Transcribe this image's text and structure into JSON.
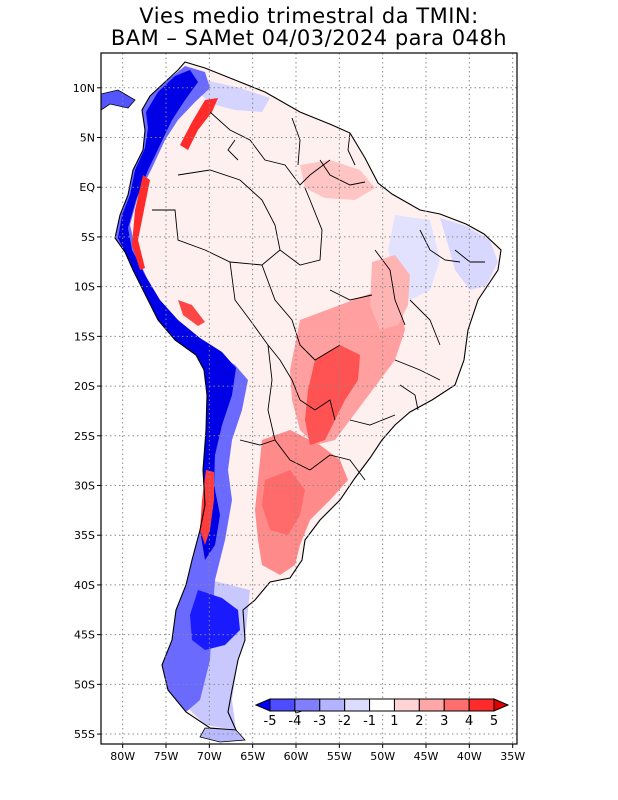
{
  "title_line1": "Vies medio trimestral da TMIN:",
  "title_line2": "BAM – SAMet 04/03/2024  para 048h",
  "lat_labels": [
    {
      "label": "10N",
      "lat": 10
    },
    {
      "label": "5N",
      "lat": 5
    },
    {
      "label": "EQ",
      "lat": 0
    },
    {
      "label": "5S",
      "lat": -5
    },
    {
      "label": "10S",
      "lat": -10
    },
    {
      "label": "15S",
      "lat": -15
    },
    {
      "label": "20S",
      "lat": -20
    },
    {
      "label": "25S",
      "lat": -25
    },
    {
      "label": "30S",
      "lat": -30
    },
    {
      "label": "35S",
      "lat": -35
    },
    {
      "label": "40S",
      "lat": -40
    },
    {
      "label": "45S",
      "lat": -45
    },
    {
      "label": "50S",
      "lat": -50
    },
    {
      "label": "55S",
      "lat": -55
    }
  ],
  "lon_labels": [
    {
      "label": "80W",
      "lon": -80
    },
    {
      "label": "75W",
      "lon": -75
    },
    {
      "label": "70W",
      "lon": -70
    },
    {
      "label": "65W",
      "lon": -65
    },
    {
      "label": "60W",
      "lon": -60
    },
    {
      "label": "55W",
      "lon": -55
    },
    {
      "label": "50W",
      "lon": -50
    },
    {
      "label": "45W",
      "lon": -45
    },
    {
      "label": "40W",
      "lon": -40
    },
    {
      "label": "35W",
      "lon": -35
    }
  ],
  "map_extent": {
    "lon_min": -82.5,
    "lon_max": -34.5,
    "lat_min": -56,
    "lat_max": 13.5
  },
  "colorbar": {
    "labels": [
      "-5",
      "-4",
      "-3",
      "-2",
      "-1",
      "1",
      "2",
      "3",
      "4",
      "5"
    ],
    "colors": [
      "#0000ff",
      "#4d4dff",
      "#8080ff",
      "#b3b3ff",
      "#dcdcff",
      "#ffffff",
      "#ffd4d4",
      "#ffa6a6",
      "#ff6e6e",
      "#ff2a2a",
      "#e00000"
    ]
  },
  "colors": {
    "deep_blue": "#0000e6",
    "mid_blue": "#6666ff",
    "light_blue": "#c8c8ff",
    "light_red": "#ffd2d2",
    "mid_red": "#ff8c8c",
    "strong_red": "#ff3c3c",
    "grid": "#8a8a8a",
    "border": "#000000"
  }
}
